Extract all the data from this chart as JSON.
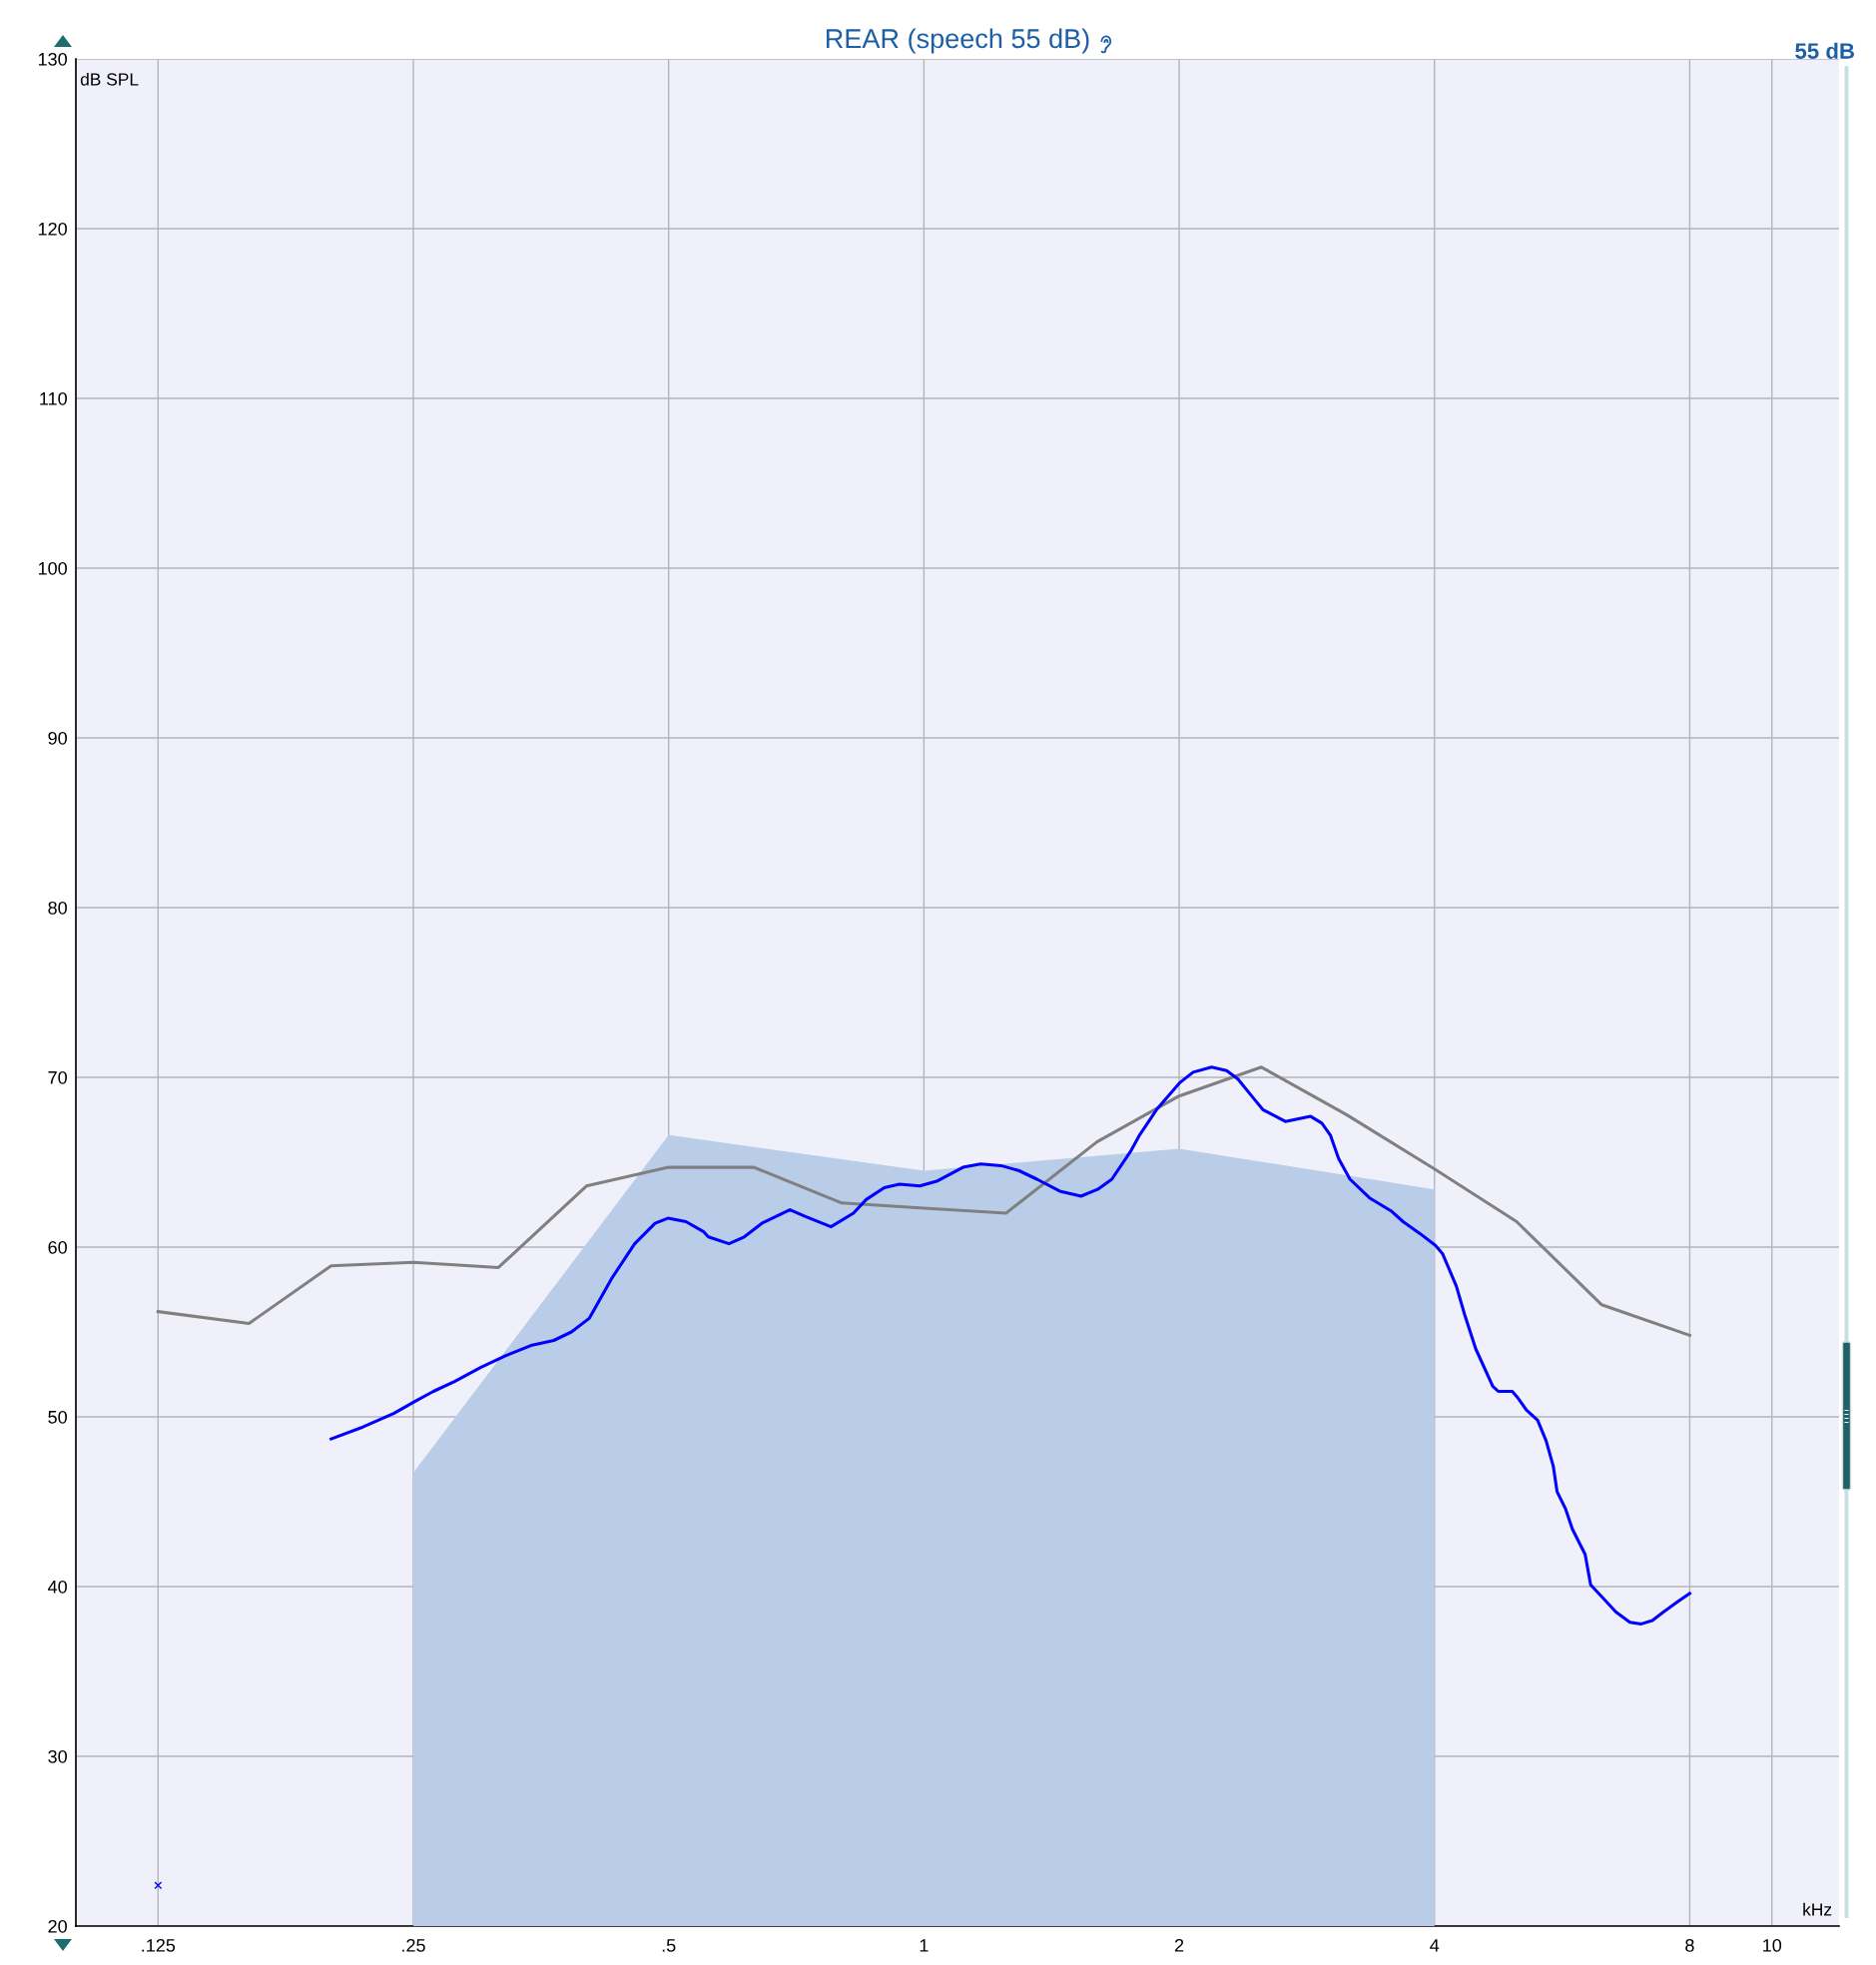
{
  "chart_data": {
    "type": "line",
    "title": "REAR (speech 55 dB)",
    "xlabel": "kHz",
    "ylabel": "dB SPL",
    "annotations": [
      "55 dB"
    ],
    "log": "x",
    "xlim": [
      0.1,
      12
    ],
    "xticks": [
      {
        "value": 0.125,
        "label": ".125"
      },
      {
        "value": 0.25,
        "label": ".25"
      },
      {
        "value": 0.5,
        "label": ".5"
      },
      1,
      2,
      4,
      8,
      10
    ],
    "ylim": [
      20,
      130
    ],
    "yticks": [
      20,
      30,
      40,
      50,
      60,
      70,
      80,
      90,
      100,
      110,
      120,
      130
    ],
    "grid": true,
    "series": [
      {
        "type": "area",
        "color": "#b9cde8",
        "x": [
          0.25,
          0.5,
          1,
          2,
          4
        ],
        "values": [
          46.7,
          66.6,
          64.5,
          65.8,
          63.4
        ]
      },
      {
        "color": "#808080",
        "x": [
          0.125,
          0.16,
          0.2,
          0.25,
          0.315,
          0.4,
          0.5,
          0.63,
          0.8,
          1,
          1.25,
          1.6,
          2,
          2.5,
          3.15,
          4,
          5,
          6.3,
          8
        ],
        "values": [
          56.2,
          55.5,
          58.9,
          59.1,
          58.8,
          63.6,
          64.7,
          64.7,
          62.6,
          62.3,
          62.0,
          66.2,
          68.9,
          70.6,
          67.8,
          64.6,
          61.5,
          56.6,
          54.8
        ]
      },
      {
        "color": "#0000ff",
        "x": [
          0.2,
          0.218,
          0.237,
          0.251,
          0.264,
          0.28,
          0.3,
          0.321,
          0.344,
          0.366,
          0.384,
          0.403,
          0.429,
          0.456,
          0.482,
          0.499,
          0.524,
          0.55,
          0.557,
          0.589,
          0.614,
          0.644,
          0.695,
          0.725,
          0.777,
          0.826,
          0.855,
          0.898,
          0.936,
          0.989,
          1.038,
          1.112,
          1.167,
          1.233,
          1.295,
          1.359,
          1.446,
          1.532,
          1.603,
          1.666,
          1.756,
          1.796,
          1.881,
          2.005,
          2.077,
          2.184,
          2.275,
          2.346,
          2.454,
          2.51,
          2.668,
          2.858,
          2.946,
          3.015,
          3.084,
          3.18,
          3.353,
          3.563,
          3.673,
          3.845,
          4.01,
          4.09,
          4.245,
          4.343,
          4.475,
          4.686,
          4.757,
          4.941,
          5.02,
          5.134,
          5.293,
          5.416,
          5.523,
          5.58,
          5.708,
          5.816,
          6.022,
          6.113,
          6.302,
          6.548,
          6.8,
          7.013,
          7.227,
          7.448,
          7.738,
          8.0
        ],
        "values": [
          48.7,
          49.4,
          50.2,
          50.9,
          51.5,
          52.1,
          52.9,
          53.6,
          54.2,
          54.5,
          55.0,
          55.8,
          58.2,
          60.2,
          61.4,
          61.7,
          61.5,
          60.9,
          60.6,
          60.2,
          60.6,
          61.4,
          62.2,
          61.8,
          61.2,
          62.0,
          62.8,
          63.5,
          63.7,
          63.6,
          63.9,
          64.7,
          64.9,
          64.8,
          64.5,
          64.0,
          63.3,
          63.0,
          63.4,
          64.0,
          65.7,
          66.6,
          68.1,
          69.7,
          70.3,
          70.6,
          70.4,
          69.9,
          68.7,
          68.1,
          67.4,
          67.7,
          67.3,
          66.6,
          65.2,
          64.0,
          62.9,
          62.1,
          61.5,
          60.8,
          60.1,
          59.6,
          57.7,
          56.0,
          54.0,
          51.8,
          51.5,
          51.5,
          51.1,
          50.4,
          49.8,
          48.6,
          47.1,
          45.6,
          44.6,
          43.4,
          41.9,
          40.1,
          39.4,
          38.5,
          37.9,
          37.8,
          38.0,
          38.5,
          39.1,
          39.6
        ]
      },
      {
        "type": "scatter",
        "color": "#0000ff",
        "marker": "cross",
        "x": [
          0.125
        ],
        "values": [
          22.4
        ]
      }
    ]
  }
}
